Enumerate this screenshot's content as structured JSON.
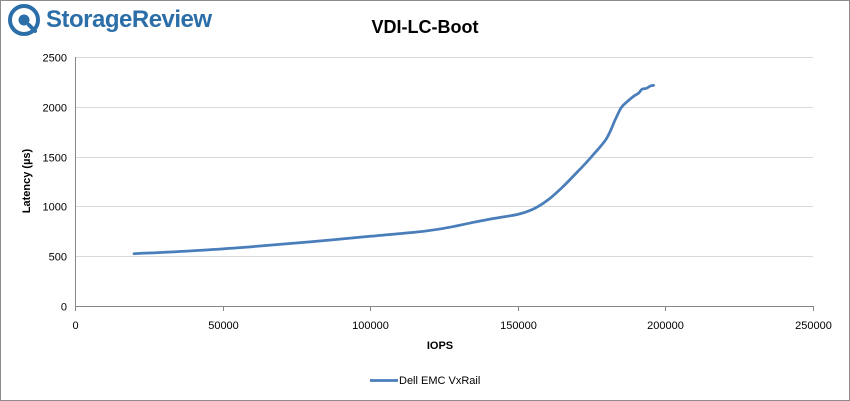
{
  "brand": {
    "logo_text": "StorageReview",
    "icon": "storagereview-logo-icon",
    "color": "#2c6ea8"
  },
  "chart_data": {
    "type": "line",
    "title": "VDI-LC-Boot",
    "xlabel": "IOPS",
    "ylabel": "Latency (µs)",
    "xlim": [
      0,
      250000
    ],
    "ylim": [
      0,
      2500
    ],
    "xticks": [
      0,
      50000,
      100000,
      150000,
      200000,
      250000
    ],
    "yticks": [
      0,
      500,
      1000,
      1500,
      2000,
      2500
    ],
    "grid": true,
    "legend_position": "bottom",
    "series": [
      {
        "name": "Dell EMC VxRail",
        "color": "#4a7ebb",
        "x": [
          20000,
          40000,
          60000,
          80000,
          100000,
          115000,
          125000,
          135000,
          142000,
          150000,
          155000,
          160000,
          165000,
          170000,
          175000,
          180000,
          183000,
          185000,
          187000,
          189000,
          191000,
          192000,
          193500,
          195000,
          196000
        ],
        "y": [
          525,
          555,
          595,
          645,
          700,
          740,
          780,
          840,
          880,
          920,
          970,
          1060,
          1190,
          1340,
          1500,
          1680,
          1870,
          1990,
          2050,
          2100,
          2140,
          2175,
          2185,
          2210,
          2215
        ]
      }
    ]
  }
}
